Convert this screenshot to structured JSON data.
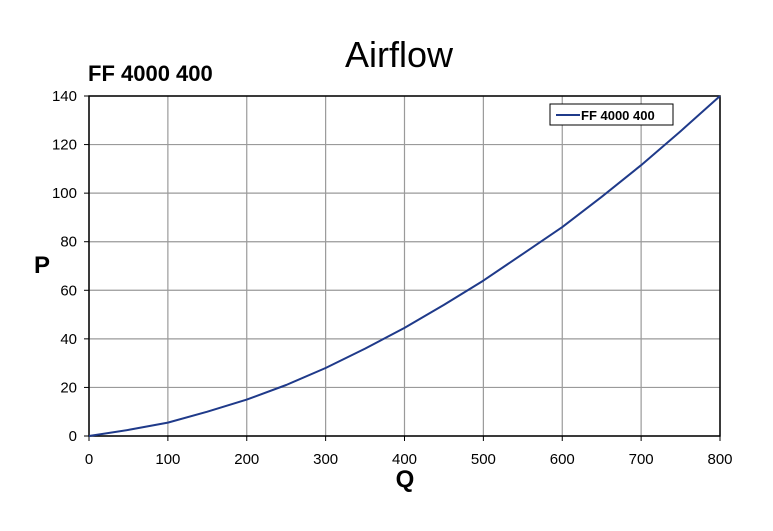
{
  "chart_data": {
    "type": "line",
    "title": "Airflow",
    "subtitle": "FF 4000 400",
    "xlabel": "Q",
    "ylabel": "P",
    "xlim": [
      0,
      800
    ],
    "ylim": [
      0,
      140
    ],
    "x_ticks": [
      0,
      100,
      200,
      300,
      400,
      500,
      600,
      700,
      800
    ],
    "y_ticks": [
      0,
      20,
      40,
      60,
      80,
      100,
      120,
      140
    ],
    "grid": true,
    "legend_position": "top-right",
    "series": [
      {
        "name": "FF 4000 400",
        "color": "#1f3a8a",
        "x": [
          0,
          50,
          100,
          150,
          200,
          250,
          300,
          350,
          400,
          450,
          500,
          550,
          600,
          650,
          700,
          750,
          800
        ],
        "y": [
          0,
          2.5,
          5.5,
          10,
          15,
          21,
          28,
          36,
          44.5,
          54,
          64,
          75,
          86,
          98.5,
          111.5,
          125.5,
          140
        ]
      }
    ]
  }
}
